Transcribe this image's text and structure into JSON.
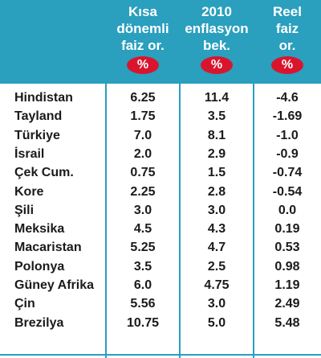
{
  "table": {
    "headers": [
      {
        "lines": [
          "Kısa",
          "dönemli",
          "faiz or."
        ],
        "unit": "%"
      },
      {
        "lines": [
          "2010",
          "enflasyon",
          "bek."
        ],
        "unit": "%"
      },
      {
        "lines": [
          "Reel",
          "faiz",
          "or."
        ],
        "unit": "%"
      }
    ],
    "rows": [
      {
        "country": "Hindistan",
        "short_rate": "6.25",
        "inflation_2010": "11.4",
        "real_rate": "-4.6"
      },
      {
        "country": "Tayland",
        "short_rate": "1.75",
        "inflation_2010": "3.5",
        "real_rate": "-1.69"
      },
      {
        "country": "Türkiye",
        "short_rate": "7.0",
        "inflation_2010": "8.1",
        "real_rate": "-1.0"
      },
      {
        "country": "İsrail",
        "short_rate": "2.0",
        "inflation_2010": "2.9",
        "real_rate": "-0.9"
      },
      {
        "country": "Çek Cum.",
        "short_rate": "0.75",
        "inflation_2010": "1.5",
        "real_rate": "-0.74"
      },
      {
        "country": "Kore",
        "short_rate": "2.25",
        "inflation_2010": "2.8",
        "real_rate": "-0.54"
      },
      {
        "country": "Şili",
        "short_rate": "3.0",
        "inflation_2010": "3.0",
        "real_rate": "0.0"
      },
      {
        "country": "Meksika",
        "short_rate": "4.5",
        "inflation_2010": "4.3",
        "real_rate": "0.19"
      },
      {
        "country": "Macaristan",
        "short_rate": "5.25",
        "inflation_2010": "4.7",
        "real_rate": "0.53"
      },
      {
        "country": "Polonya",
        "short_rate": "3.5",
        "inflation_2010": "2.5",
        "real_rate": "0.98"
      },
      {
        "country": "Güney Afrika",
        "short_rate": "6.0",
        "inflation_2010": "4.75",
        "real_rate": "1.19"
      },
      {
        "country": "Çin",
        "short_rate": "5.56",
        "inflation_2010": "3.0",
        "real_rate": "2.49"
      },
      {
        "country": "Brezilya",
        "short_rate": "10.75",
        "inflation_2010": "5.0",
        "real_rate": "5.48"
      }
    ]
  },
  "colors": {
    "header_bg": "#2a9fbe",
    "percent_badge": "#d9152d",
    "text": "#1a1a1a"
  },
  "chart_data": {
    "type": "table",
    "columns": [
      "",
      "Kısa dönemli faiz or. %",
      "2010 enflasyon bek. %",
      "Reel faiz or. %"
    ],
    "categories": [
      "Hindistan",
      "Tayland",
      "Türkiye",
      "İsrail",
      "Çek Cum.",
      "Kore",
      "Şili",
      "Meksika",
      "Macaristan",
      "Polonya",
      "Güney Afrika",
      "Çin",
      "Brezilya"
    ],
    "series": [
      {
        "name": "Kısa dönemli faiz or. %",
        "values": [
          6.25,
          1.75,
          7.0,
          2.0,
          0.75,
          2.25,
          3.0,
          4.5,
          5.25,
          3.5,
          6.0,
          5.56,
          10.75
        ]
      },
      {
        "name": "2010 enflasyon bek. %",
        "values": [
          11.4,
          3.5,
          8.1,
          2.9,
          1.5,
          2.8,
          3.0,
          4.3,
          4.7,
          2.5,
          4.75,
          3.0,
          5.0
        ]
      },
      {
        "name": "Reel faiz or. %",
        "values": [
          -4.6,
          -1.69,
          -1.0,
          -0.9,
          -0.74,
          -0.54,
          0.0,
          0.19,
          0.53,
          0.98,
          1.19,
          2.49,
          5.48
        ]
      }
    ]
  }
}
